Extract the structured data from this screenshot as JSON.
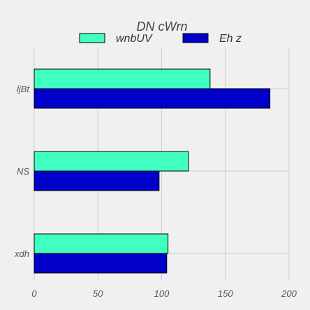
{
  "chart_data": {
    "type": "bar",
    "orientation": "horizontal",
    "categories": [
      "xdh",
      "NS",
      "ljBt"
    ],
    "series": [
      {
        "name": "wnbUV",
        "color": "#40ffc0",
        "values": [
          105,
          121,
          138
        ]
      },
      {
        "name": "Eh z",
        "color": "#0000c8",
        "values": [
          104,
          98,
          185
        ]
      }
    ],
    "xlim": [
      0,
      200
    ],
    "xticks": [
      0,
      50,
      100,
      150,
      200
    ],
    "grid": true,
    "legend": {
      "title": "DN cWrn",
      "placement": "top-center"
    },
    "title": "",
    "xlabel": "",
    "ylabel": ""
  },
  "colors": {
    "background": "#f0f0f0",
    "grid": "#cbcbcb",
    "bar_edge": "#000000"
  }
}
